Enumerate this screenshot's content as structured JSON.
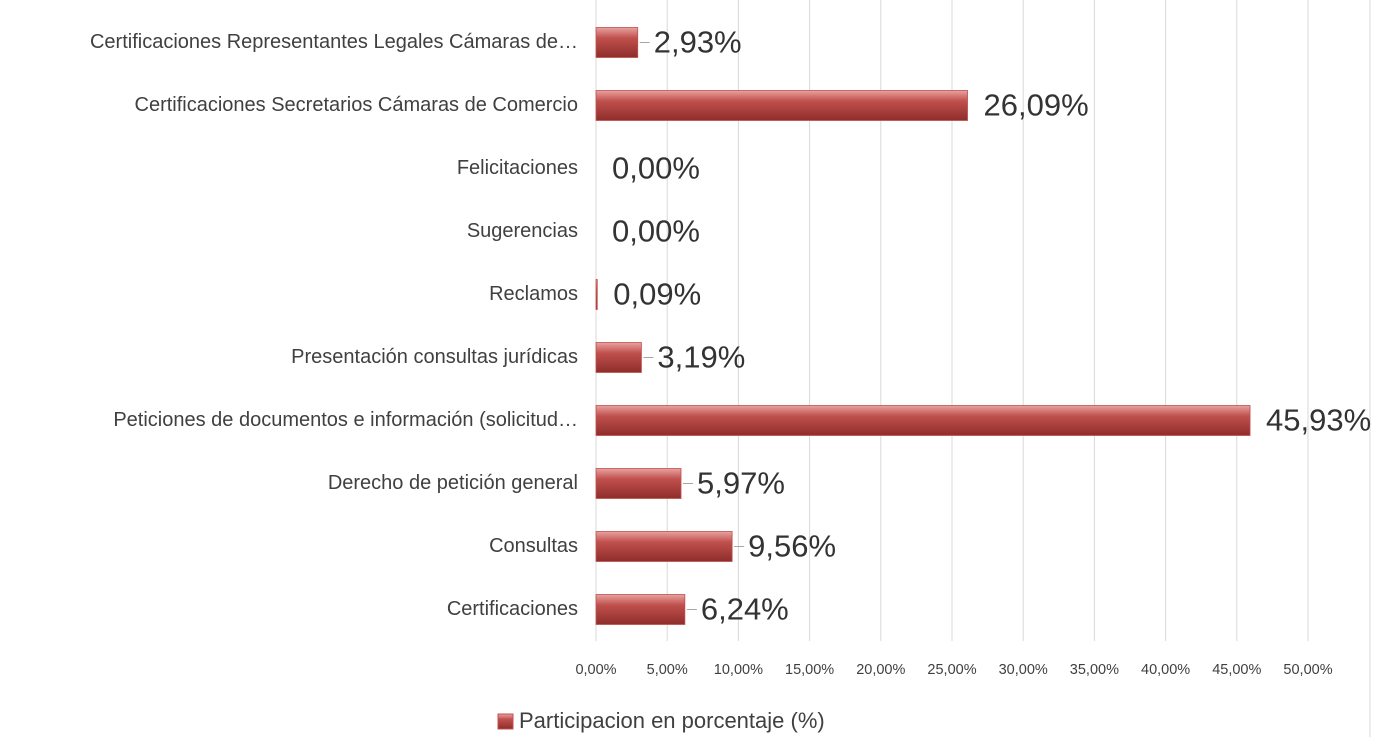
{
  "chart_data": {
    "type": "bar",
    "orientation": "horizontal",
    "categories": [
      "Certificaciones Representantes Legales  Cámaras de…",
      "Certificaciones Secretarios Cámaras de Comercio",
      "Felicitaciones",
      "Sugerencias",
      "Reclamos",
      "Presentación consultas jurídicas",
      "Peticiones de documentos e información (solicitud…",
      "Derecho de petición general",
      "Consultas",
      "Certificaciones"
    ],
    "series": [
      {
        "name": "Participacion en porcentaje (%)",
        "color": "#c0504d",
        "values": [
          2.93,
          26.09,
          0,
          0,
          0.09,
          3.19,
          45.93,
          5.97,
          9.56,
          6.24
        ],
        "value_labels": [
          "2,93%",
          "26,09%",
          "0,00%",
          "0,00%",
          "0,09%",
          "3,19%",
          "45,93%",
          "5,97%",
          "9,56%",
          "6,24%"
        ]
      }
    ],
    "xlim": [
      0,
      50
    ],
    "xticks": [
      {
        "value": 0,
        "label": "0,00%"
      },
      {
        "value": 5,
        "label": "5,00%"
      },
      {
        "value": 10,
        "label": "10,00%"
      },
      {
        "value": 15,
        "label": "15,00%"
      },
      {
        "value": 20,
        "label": "20,00%"
      },
      {
        "value": 25,
        "label": "25,00%"
      },
      {
        "value": 30,
        "label": "30,00%"
      },
      {
        "value": 35,
        "label": "35,00%"
      },
      {
        "value": 40,
        "label": "40,00%"
      },
      {
        "value": 45,
        "label": "45,00%"
      },
      {
        "value": 50,
        "label": "50,00%"
      }
    ],
    "grid": true,
    "legend": "bottom"
  }
}
